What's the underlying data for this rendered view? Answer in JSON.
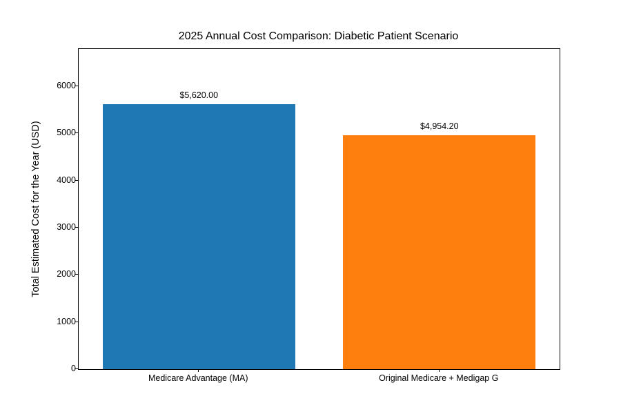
{
  "chart_data": {
    "type": "bar",
    "title": "2025 Annual Cost Comparison: Diabetic Patient Scenario",
    "xlabel": "",
    "ylabel": "Total Estimated Cost for the Year (USD)",
    "categories": [
      "Medicare Advantage (MA)",
      "Original Medicare + Medigap G"
    ],
    "values": [
      5620.0,
      4954.2
    ],
    "value_labels": [
      "$5,620.00",
      "$4,954.20"
    ],
    "bar_colors": [
      "#1f77b4",
      "#ff7f0e"
    ],
    "yticks": [
      0,
      1000,
      2000,
      3000,
      4000,
      5000,
      6000
    ],
    "ylim": [
      0,
      6790
    ],
    "bar_width_fraction": 0.8,
    "grid": false,
    "legend_position": "none"
  },
  "colors": {
    "background": "#ffffff",
    "axis_line": "#000000",
    "text": "#000000"
  }
}
